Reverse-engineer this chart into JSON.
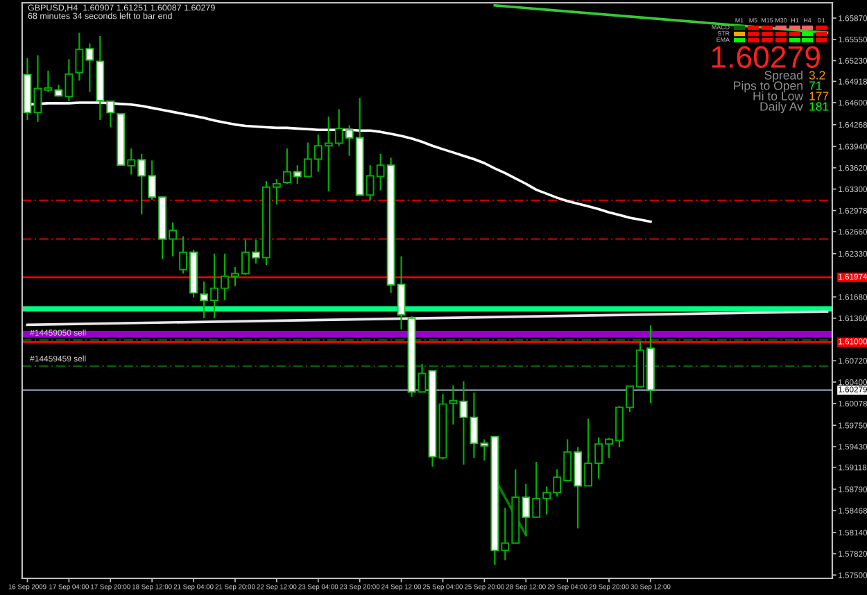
{
  "chart_data": {
    "type": "candlestick",
    "title": "GBPUSD,H4  1.60907 1.61251 1.60087 1.60279",
    "subtitle": "68 minutes 34 seconds left to bar end",
    "categories": [
      "16 Sep 2009",
      null,
      null,
      null,
      "17 Sep 04:00",
      null,
      null,
      null,
      "17 Sep 20:00",
      null,
      null,
      null,
      "18 Sep 12:00",
      null,
      null,
      null,
      "21 Sep 04:00",
      null,
      null,
      null,
      "21 Sep 20:00",
      null,
      null,
      null,
      "22 Sep 12:00",
      null,
      null,
      null,
      "23 Sep 04:00",
      null,
      null,
      null,
      "23 Sep 20:00",
      null,
      null,
      null,
      "24 Sep 12:00",
      null,
      null,
      null,
      "25 Sep 04:00",
      null,
      null,
      null,
      "25 Sep 20:00",
      null,
      null,
      null,
      "28 Sep 12:00",
      null,
      null,
      null,
      "29 Sep 04:00",
      null,
      null,
      null,
      "29 Sep 20:00",
      null,
      null,
      null,
      "30 Sep 12:00",
      null,
      null,
      null,
      null,
      null,
      null,
      null,
      null,
      null,
      null,
      null,
      null,
      null,
      null,
      null,
      null,
      null
    ],
    "ohlc": [
      [
        1.6502,
        1.6527,
        1.6434,
        1.6445
      ],
      [
        1.6445,
        1.6531,
        1.6431,
        1.6481
      ],
      [
        1.6479,
        1.6508,
        1.6476,
        1.6482
      ],
      [
        1.6479,
        1.6487,
        1.6469,
        1.647
      ],
      [
        1.6469,
        1.6525,
        1.6462,
        1.6503
      ],
      [
        1.6505,
        1.6565,
        1.6493,
        1.654
      ],
      [
        1.6541,
        1.6549,
        1.6476,
        1.6524
      ],
      [
        1.6522,
        1.656,
        1.6434,
        1.6463
      ],
      [
        1.6462,
        1.6463,
        1.6423,
        1.6445
      ],
      [
        1.6443,
        1.6443,
        1.6366,
        1.6366
      ],
      [
        1.6365,
        1.6391,
        1.6352,
        1.6374
      ],
      [
        1.6374,
        1.6383,
        1.6292,
        1.635
      ],
      [
        1.635,
        1.6373,
        1.6314,
        1.6318
      ],
      [
        1.6318,
        1.6318,
        1.6225,
        1.6255
      ],
      [
        1.6255,
        1.628,
        1.6229,
        1.6268
      ],
      [
        1.6209,
        1.6259,
        1.6203,
        1.6235
      ],
      [
        1.6235,
        1.6239,
        1.6167,
        1.6174
      ],
      [
        1.6172,
        1.6191,
        1.6136,
        1.6163
      ],
      [
        1.6163,
        1.6233,
        1.6136,
        1.6181
      ],
      [
        1.6181,
        1.6233,
        1.6163,
        1.6199
      ],
      [
        1.6199,
        1.6213,
        1.6184,
        1.6203
      ],
      [
        1.6203,
        1.6254,
        1.6201,
        1.6235
      ],
      [
        1.6235,
        1.6254,
        1.6218,
        1.6227
      ],
      [
        1.6227,
        1.6342,
        1.6216,
        1.6333
      ],
      [
        1.6333,
        1.6345,
        1.6307,
        1.6338
      ],
      [
        1.634,
        1.6391,
        1.6338,
        1.6356
      ],
      [
        1.6356,
        1.6366,
        1.6338,
        1.6349
      ],
      [
        1.6349,
        1.64,
        1.6349,
        1.6375
      ],
      [
        1.6375,
        1.6412,
        1.6356,
        1.6395
      ],
      [
        1.6395,
        1.6439,
        1.6327,
        1.6399
      ],
      [
        1.6399,
        1.645,
        1.6395,
        1.6421
      ],
      [
        1.6419,
        1.6426,
        1.638,
        1.6407
      ],
      [
        1.6407,
        1.6467,
        1.6321,
        1.6321
      ],
      [
        1.6321,
        1.6366,
        1.6313,
        1.635
      ],
      [
        1.6349,
        1.6383,
        1.6328,
        1.6366
      ],
      [
        1.6366,
        1.6377,
        1.6174,
        1.6186
      ],
      [
        1.6187,
        1.6229,
        1.6119,
        1.6141
      ],
      [
        1.6136,
        1.6139,
        1.6018,
        1.6025
      ],
      [
        1.6025,
        1.6067,
        1.6025,
        1.6053
      ],
      [
        1.6057,
        1.6057,
        1.5913,
        1.5928
      ],
      [
        1.5926,
        1.6022,
        1.5924,
        1.6007
      ],
      [
        1.6008,
        1.6035,
        1.5976,
        1.6012
      ],
      [
        1.6011,
        1.6041,
        1.5916,
        1.5987
      ],
      [
        1.5987,
        1.6024,
        1.5926,
        1.5948
      ],
      [
        1.5948,
        1.5954,
        1.5922,
        1.5944
      ],
      [
        1.5958,
        1.5958,
        1.5765,
        1.5787
      ],
      [
        1.5787,
        1.5851,
        1.5772,
        1.5798
      ],
      [
        1.5798,
        1.5909,
        1.5797,
        1.5867
      ],
      [
        1.5867,
        1.5887,
        1.581,
        1.5837
      ],
      [
        1.5837,
        1.592,
        1.5837,
        1.5865
      ],
      [
        1.5865,
        1.5883,
        1.5841,
        1.5874
      ],
      [
        1.5874,
        1.5909,
        1.5868,
        1.5897
      ],
      [
        1.5892,
        1.5954,
        1.5892,
        1.5935
      ],
      [
        1.5935,
        1.5942,
        1.582,
        1.5884
      ],
      [
        1.5884,
        1.5985,
        1.5884,
        1.5918
      ],
      [
        1.5918,
        1.5957,
        1.5895,
        1.5947
      ],
      [
        1.5947,
        1.5956,
        1.5926,
        1.5954
      ],
      [
        1.5952,
        1.6004,
        1.5942,
        1.6002
      ],
      [
        1.6002,
        1.6034,
        1.5995,
        1.6034
      ],
      [
        1.6033,
        1.6101,
        1.6033,
        1.6088
      ],
      [
        1.60907,
        1.61251,
        1.60087,
        1.60279
      ],
      null,
      null,
      null,
      null,
      null,
      null,
      null,
      null,
      null,
      null,
      null,
      null,
      null,
      null,
      null,
      null,
      null
    ],
    "series": [
      {
        "type": "line",
        "color": "#ffffff",
        "values": [
          1.6457,
          1.6458,
          1.6459,
          1.6459,
          1.6459,
          1.646,
          1.646,
          1.646,
          1.6459,
          1.6458,
          1.6457,
          1.6455,
          1.6452,
          1.6449,
          1.6446,
          1.6443,
          1.644,
          1.6437,
          1.6433,
          1.643,
          1.6427,
          1.6425,
          1.6424,
          1.6423,
          1.6422,
          1.6422,
          1.6421,
          1.642,
          1.6419,
          1.6419,
          1.6419,
          1.6419,
          1.6418,
          1.6418,
          1.6416,
          1.6413,
          1.641,
          1.6406,
          1.6401,
          1.6395,
          1.639,
          1.6385,
          1.638,
          1.6375,
          1.6369,
          1.6361,
          1.6354,
          1.6346,
          1.6338,
          1.6329,
          1.6323,
          1.6317,
          1.6312,
          1.6308,
          1.6304,
          1.63,
          1.6295,
          1.6291,
          1.6287,
          1.6284,
          1.6281,
          null,
          null,
          null,
          null,
          null,
          null,
          null,
          null,
          null,
          null,
          null,
          null,
          null,
          null,
          null,
          null,
          null
        ]
      },
      {
        "type": "line",
        "color": "#e8e8e8",
        "values": [
          1.6126,
          null,
          null,
          null,
          null,
          null,
          null,
          null,
          null,
          null,
          null,
          null,
          null,
          null,
          null,
          null,
          null,
          null,
          null,
          null,
          null,
          null,
          null,
          null,
          null,
          null,
          null,
          null,
          null,
          null,
          null,
          null,
          null,
          null,
          null,
          null,
          null,
          null,
          null,
          null,
          null,
          null,
          null,
          null,
          null,
          null,
          null,
          null,
          null,
          null,
          null,
          null,
          null,
          null,
          null,
          null,
          null,
          null,
          null,
          null,
          null,
          null,
          null,
          null,
          null,
          null,
          null,
          null,
          null,
          null,
          null,
          null,
          null,
          null,
          null,
          null,
          null,
          1.6146
        ]
      },
      {
        "type": "line",
        "color": "#33cc33",
        "values": [
          null,
          null,
          null,
          null,
          null,
          null,
          null,
          null,
          null,
          null,
          null,
          null,
          null,
          null,
          null,
          null,
          null,
          null,
          null,
          null,
          null,
          null,
          null,
          null,
          null,
          null,
          null,
          null,
          null,
          null,
          null,
          null,
          null,
          null,
          null,
          null,
          null,
          null,
          null,
          null,
          null,
          null,
          null,
          null,
          null,
          1.6606,
          null,
          null,
          null,
          null,
          null,
          null,
          null,
          null,
          null,
          null,
          null,
          null,
          null,
          null,
          null,
          null,
          null,
          null,
          null,
          null,
          null,
          null,
          null,
          null,
          null,
          null,
          null,
          null,
          null,
          null,
          null,
          1.6565
        ]
      },
      {
        "type": "line",
        "color": "#008000",
        "values": [
          null,
          null,
          null,
          null,
          null,
          null,
          null,
          null,
          null,
          null,
          null,
          null,
          null,
          null,
          null,
          null,
          null,
          null,
          null,
          null,
          null,
          null,
          null,
          null,
          null,
          null,
          null,
          null,
          null,
          null,
          null,
          null,
          null,
          null,
          null,
          null,
          null,
          null,
          null,
          null,
          null,
          null,
          null,
          null,
          null,
          1.5895,
          null,
          null,
          1.581,
          null,
          null,
          null,
          null,
          null,
          null,
          null,
          null,
          null,
          null,
          null,
          null,
          null,
          null,
          null,
          null,
          null,
          null,
          null,
          null,
          null,
          null,
          null,
          null,
          null,
          null,
          null,
          null,
          null
        ]
      }
    ],
    "ylim": [
      1.5745,
      1.661
    ],
    "yticks": [
      {
        "value": 1.575,
        "label": "1.57500"
      },
      {
        "value": 1.5782,
        "label": "1.57820"
      },
      {
        "value": 1.5814,
        "label": "1.58140"
      },
      {
        "value": 1.58468,
        "label": "1.58468"
      },
      {
        "value": 1.5879,
        "label": "1.58790"
      },
      {
        "value": 1.59118,
        "label": "1.59118"
      },
      {
        "value": 1.5943,
        "label": "1.59430"
      },
      {
        "value": 1.5975,
        "label": "1.59750"
      },
      {
        "value": 1.60078,
        "label": "1.60078"
      },
      {
        "value": 1.604,
        "label": "1.60400"
      },
      {
        "value": 1.6072,
        "label": "1.60720"
      },
      {
        "value": 1.6136,
        "label": "1.61360"
      },
      {
        "value": 1.6168,
        "label": "1.61680"
      },
      {
        "value": 1.6233,
        "label": "1.62330"
      },
      {
        "value": 1.6266,
        "label": "1.62660"
      },
      {
        "value": 1.62978,
        "label": "1.62978"
      },
      {
        "value": 1.633,
        "label": "1.63300"
      },
      {
        "value": 1.6362,
        "label": "1.63620"
      },
      {
        "value": 1.6394,
        "label": "1.63940"
      },
      {
        "value": 1.64268,
        "label": "1.64268"
      },
      {
        "value": 1.646,
        "label": "1.64600"
      },
      {
        "value": 1.64918,
        "label": "1.64918"
      },
      {
        "value": 1.6523,
        "label": "1.65230"
      },
      {
        "value": 1.6555,
        "label": "1.65550"
      },
      {
        "value": 1.6587,
        "label": "1.65870"
      }
    ],
    "ref_lines": [
      {
        "axis": "y",
        "value": 1.6313,
        "color": "#c00000",
        "line_style": "dashed"
      },
      {
        "axis": "y",
        "value": 1.6255,
        "color": "#c00000",
        "line_style": "dashed"
      },
      {
        "axis": "y",
        "value": 1.61974,
        "label": "1.61974",
        "color": "#ff0000",
        "line_style": "solid"
      },
      {
        "axis": "y",
        "value": 1.61,
        "label": "1.61000",
        "color": "#ff0000",
        "line_style": "solid"
      },
      {
        "axis": "y",
        "value": 1.6103,
        "label": "#14459050 sell",
        "color": "#006400",
        "line_style": "dashed"
      },
      {
        "axis": "y",
        "value": 1.6064,
        "label": "#14459459 sell",
        "color": "#006400",
        "line_style": "dashed"
      },
      {
        "axis": "y",
        "value": 1.60279,
        "label": "1.60279",
        "color": "#708090",
        "line_style": "solid"
      }
    ],
    "bands": [
      {
        "axis": "y",
        "from": 1.6146,
        "to": 1.6154,
        "color": "#00ff80"
      },
      {
        "axis": "y",
        "from": 1.6107,
        "to": 1.6117,
        "color": "#9900cc"
      }
    ],
    "annotations": [
      "1.60279",
      "Spread",
      "3.2",
      "Pips to Open",
      "71",
      "Hi to Low",
      "177",
      "Daily Av",
      "181",
      "MACD",
      "STR",
      "EMA",
      "M1",
      "M5",
      "M15",
      "M30",
      "H1",
      "H4",
      "D1"
    ],
    "grid": false,
    "legend": false
  }
}
